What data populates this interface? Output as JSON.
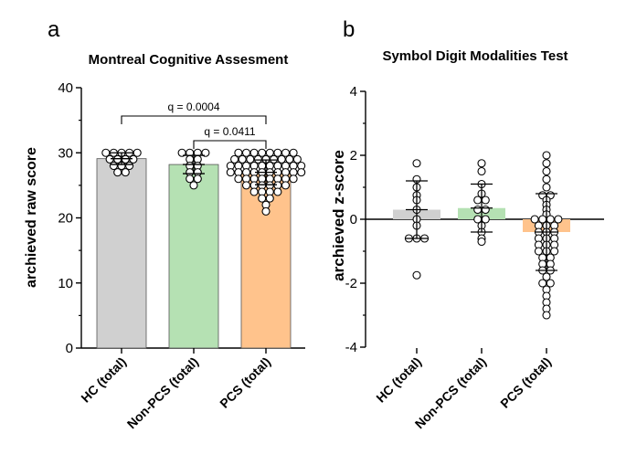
{
  "panel_labels": [
    "a",
    "b"
  ],
  "chart_data": [
    {
      "type": "bar",
      "title": "Montreal  Cognitive  Assesment",
      "xlabel": "",
      "ylabel": "archieved raw score",
      "ylim": [
        0,
        40
      ],
      "yticks": [
        0,
        10,
        20,
        30,
        40
      ],
      "categories": [
        "HC (total)",
        "Non-PCS (total)",
        "PCS (total)"
      ],
      "values": [
        29.1,
        28.2,
        27.0
      ],
      "sd": [
        0.9,
        1.4,
        1.9
      ],
      "colors": [
        "#d0d0d0",
        "#b5e1b3",
        "#ffc38c"
      ],
      "points": [
        [
          30,
          30,
          30,
          30,
          30,
          29,
          29,
          29,
          29,
          28,
          28,
          28,
          27,
          27
        ],
        [
          30,
          30,
          30,
          30,
          29,
          29,
          28,
          28,
          27,
          27,
          26,
          26,
          25
        ],
        [
          30,
          30,
          30,
          30,
          30,
          30,
          30,
          30,
          29,
          29,
          29,
          29,
          29,
          29,
          29,
          29,
          29,
          28,
          28,
          28,
          28,
          28,
          28,
          28,
          28,
          28,
          28,
          27,
          27,
          27,
          27,
          27,
          27,
          27,
          27,
          27,
          27,
          26,
          26,
          26,
          26,
          26,
          26,
          26,
          26,
          25,
          25,
          25,
          25,
          25,
          25,
          24,
          24,
          24,
          24,
          23,
          23,
          22,
          21
        ]
      ],
      "annotations": [
        {
          "label": "q = 0.0004",
          "from": 0,
          "to": 2
        },
        {
          "label": "q = 0.0411",
          "from": 1,
          "to": 2
        }
      ]
    },
    {
      "type": "bar",
      "title": "Symbol Digit Modalities Test",
      "xlabel": "",
      "ylabel": "archieved z-score",
      "ylim": [
        -4,
        4
      ],
      "yticks": [
        -4,
        -2,
        0,
        2,
        4
      ],
      "categories": [
        "HC (total)",
        "Non-PCS (total)",
        "PCS (total)"
      ],
      "values": [
        0.3,
        0.35,
        -0.4
      ],
      "sd": [
        0.9,
        0.75,
        1.2
      ],
      "colors": [
        "#d0d0d0",
        "#b5e1b3",
        "#ffc38c"
      ],
      "points": [
        [
          1.75,
          1.25,
          1.0,
          0.75,
          0.6,
          0.3,
          0.0,
          -0.2,
          -0.6,
          -0.6,
          -0.6,
          -1.75
        ],
        [
          1.75,
          1.5,
          1.1,
          0.8,
          0.6,
          0.6,
          0.3,
          0.3,
          0.0,
          0.0,
          -0.2,
          -0.4,
          -0.6,
          -0.7
        ],
        [
          2.0,
          1.75,
          1.5,
          1.25,
          1.0,
          0.75,
          0.75,
          0.6,
          0.45,
          0.3,
          0.15,
          0.0,
          0.0,
          0.0,
          0.0,
          -0.2,
          -0.2,
          -0.2,
          -0.4,
          -0.4,
          -0.4,
          -0.6,
          -0.6,
          -0.6,
          -0.8,
          -0.8,
          -0.8,
          -1.0,
          -1.0,
          -1.0,
          -1.2,
          -1.2,
          -1.4,
          -1.4,
          -1.6,
          -1.6,
          -1.8,
          -2.0,
          -2.0,
          -2.2,
          -2.4,
          -2.6,
          -2.8,
          -3.0
        ]
      ]
    }
  ]
}
